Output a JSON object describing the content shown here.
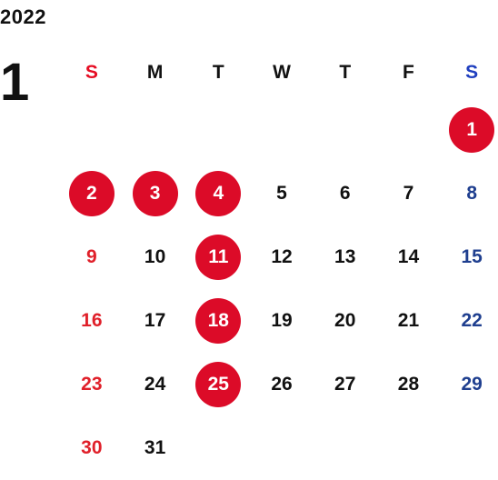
{
  "header": {
    "year": "2022",
    "month": "1"
  },
  "weekdays": [
    "S",
    "M",
    "T",
    "W",
    "T",
    "F",
    "S"
  ],
  "weeks": [
    [
      "",
      "",
      "",
      "",
      "",
      "",
      "1"
    ],
    [
      "2",
      "3",
      "4",
      "5",
      "6",
      "7",
      "8"
    ],
    [
      "9",
      "10",
      "11",
      "12",
      "13",
      "14",
      "15"
    ],
    [
      "16",
      "17",
      "18",
      "19",
      "20",
      "21",
      "22"
    ],
    [
      "23",
      "24",
      "25",
      "26",
      "27",
      "28",
      "29"
    ],
    [
      "30",
      "31",
      "",
      "",
      "",
      "",
      ""
    ]
  ],
  "holidays": [
    "1",
    "2",
    "3",
    "4",
    "11",
    "18",
    "25"
  ],
  "colors": {
    "sunday": "#e0202a",
    "saturday": "#1f3f8f",
    "holiday_circle": "#dc0b28",
    "text": "#111111"
  }
}
